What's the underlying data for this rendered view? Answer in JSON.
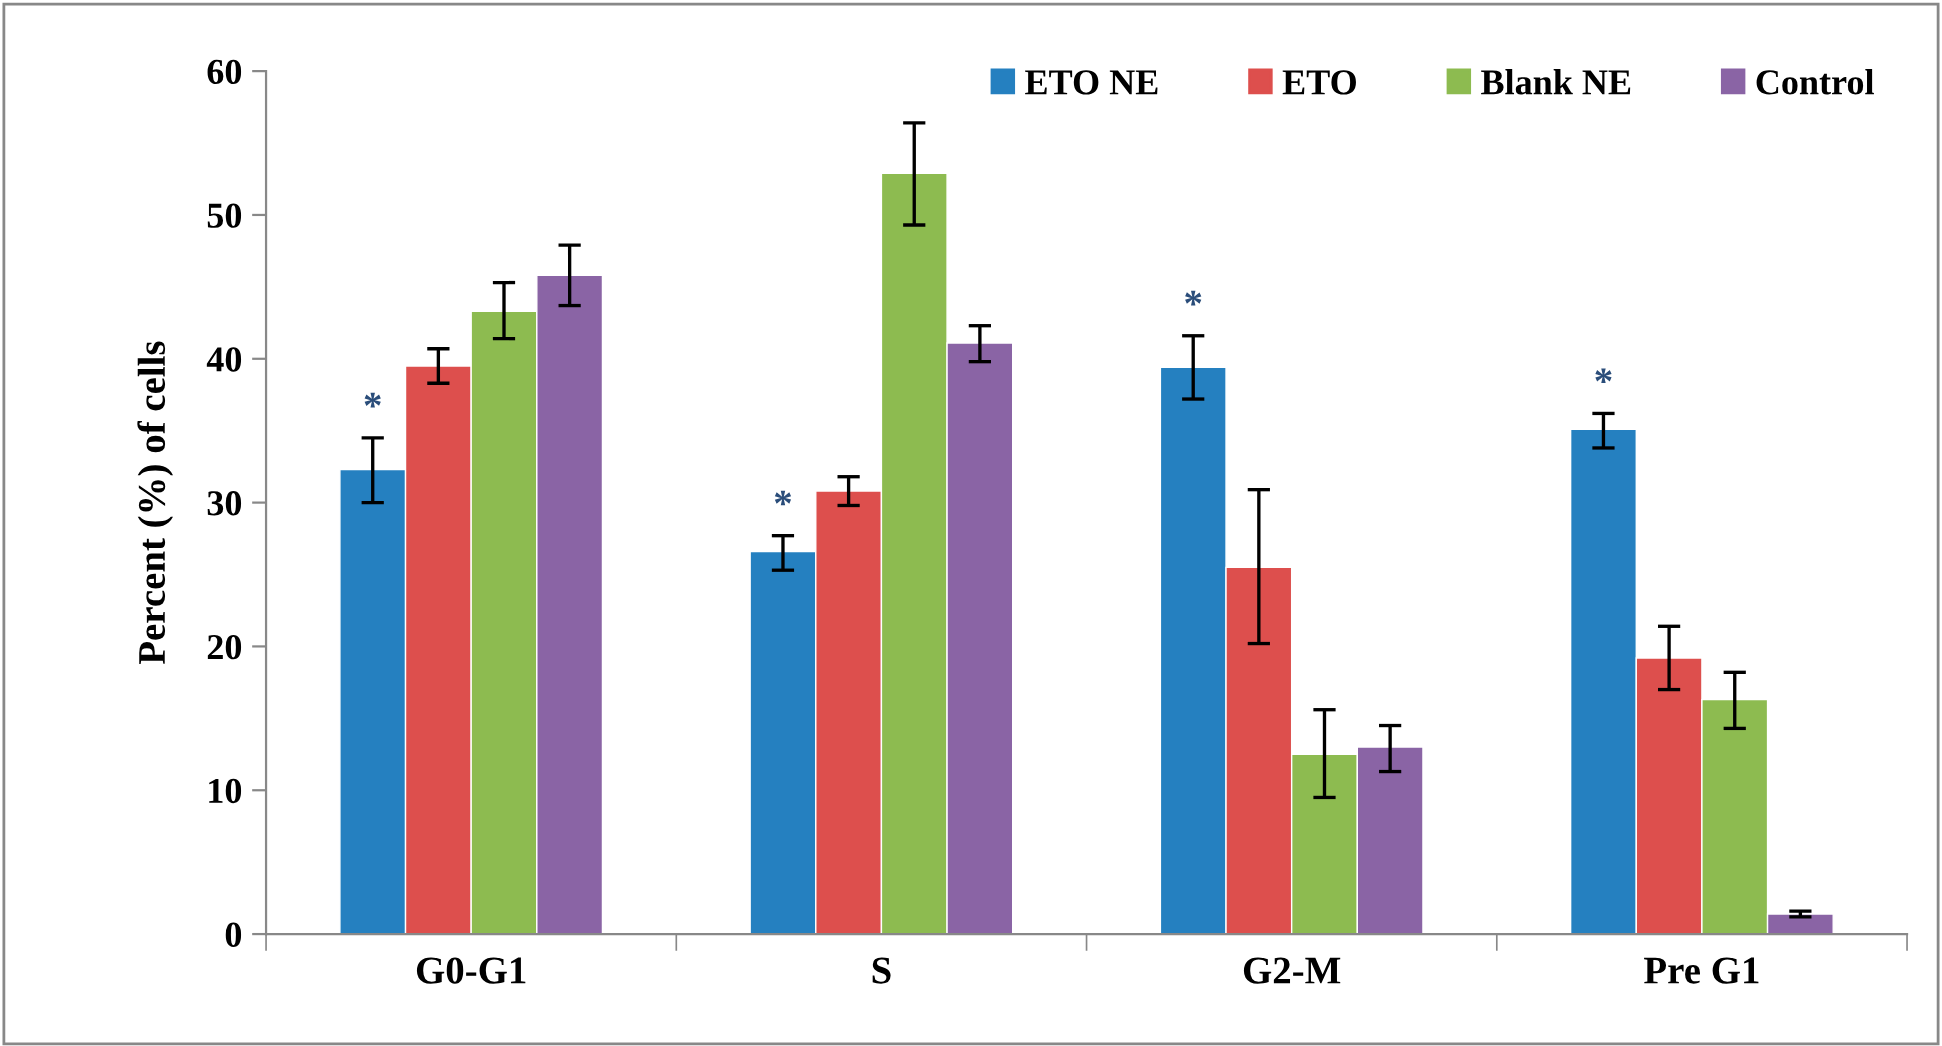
{
  "chart_data": {
    "type": "bar",
    "ylabel": "Percent (%) of cells",
    "categories": [
      "G0-G1",
      "S",
      "G2-M",
      "Pre G1"
    ],
    "series": [
      {
        "name": "ETO NE",
        "color": "#2580c0",
        "values": [
          32.3,
          26.6,
          39.4,
          35.1
        ],
        "errors": [
          [
            30.0,
            34.5
          ],
          [
            25.3,
            27.7
          ],
          [
            37.2,
            41.6
          ],
          [
            33.8,
            36.2
          ]
        ]
      },
      {
        "name": "ETO",
        "color": "#dd4f4d",
        "values": [
          39.5,
          30.8,
          25.5,
          19.2
        ],
        "errors": [
          [
            38.3,
            40.7
          ],
          [
            29.8,
            31.8
          ],
          [
            20.2,
            30.9
          ],
          [
            17.0,
            21.4
          ]
        ]
      },
      {
        "name": "Blank NE",
        "color": "#8dbb50",
        "values": [
          43.3,
          52.9,
          12.5,
          16.3
        ],
        "errors": [
          [
            41.4,
            45.3
          ],
          [
            49.3,
            56.4
          ],
          [
            9.5,
            15.6
          ],
          [
            14.3,
            18.2
          ]
        ]
      },
      {
        "name": "Control",
        "color": "#8a64a5",
        "values": [
          45.8,
          41.1,
          13.0,
          1.4
        ],
        "errors": [
          [
            43.7,
            47.9
          ],
          [
            39.8,
            42.3
          ],
          [
            11.3,
            14.5
          ],
          [
            1.2,
            1.6
          ]
        ]
      }
    ],
    "annotations": [
      "*",
      "*",
      "*",
      "*"
    ],
    "ylim": [
      0,
      60
    ],
    "yticks": [
      0,
      10,
      20,
      30,
      40,
      50,
      60
    ],
    "grid": false,
    "legend": "top right"
  }
}
